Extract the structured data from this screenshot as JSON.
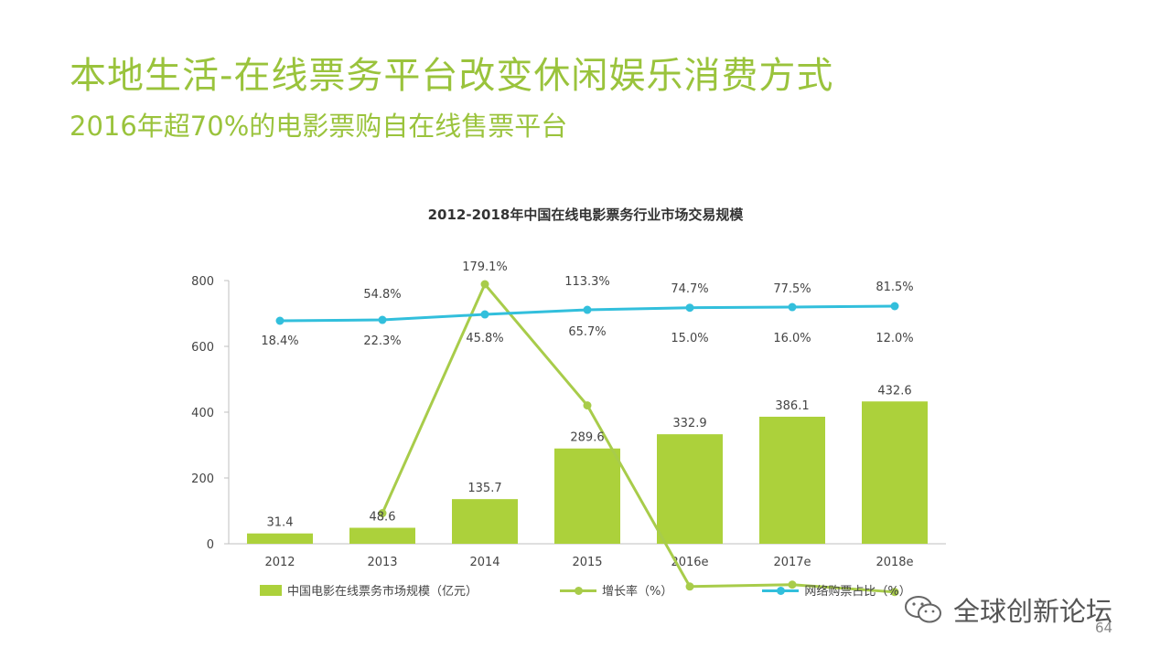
{
  "slide": {
    "title": "本地生活-在线票务平台改变休闲娱乐消费方式",
    "subtitle": "2016年超70%的电影票购自在线售票平台",
    "watermark": "全球创新论坛",
    "page_number": "64"
  },
  "chart_data": {
    "type": "bar",
    "title": "2012-2018年中国在线电影票务行业市场交易规模",
    "categories": [
      "2012",
      "2013",
      "2014",
      "2015",
      "2016e",
      "2017e",
      "2018e"
    ],
    "series": [
      {
        "name": "中国电影在线票务市场规模（亿元）",
        "type": "bar",
        "color": "#acd13b",
        "values": [
          31.4,
          48.6,
          135.7,
          289.6,
          332.9,
          386.1,
          432.6
        ],
        "labels": [
          "31.4",
          "48.6",
          "135.7",
          "289.6",
          "332.9",
          "386.1",
          "432.6"
        ]
      },
      {
        "name": "增长率（%）",
        "type": "line",
        "color": "#a8cc4a",
        "values": [
          null,
          54.8,
          179.1,
          113.3,
          15.0,
          16.0,
          12.0
        ],
        "labels": [
          "",
          "54.8%",
          "179.1%",
          "113.3%",
          "15.0%",
          "16.0%",
          "12.0%"
        ]
      },
      {
        "name": "网络购票占比（%）",
        "type": "line",
        "color": "#32bfdc",
        "values": [
          18.4,
          22.3,
          45.8,
          65.7,
          74.7,
          77.5,
          81.5
        ],
        "labels": [
          "18.4%",
          "22.3%",
          "45.8%",
          "65.7%",
          "74.7%",
          "77.5%",
          "81.5%"
        ]
      }
    ],
    "y_ticks": [
      "0",
      "200",
      "400",
      "600",
      "800"
    ],
    "ylim": [
      0,
      800
    ],
    "legend_position": "bottom",
    "grid": false
  }
}
